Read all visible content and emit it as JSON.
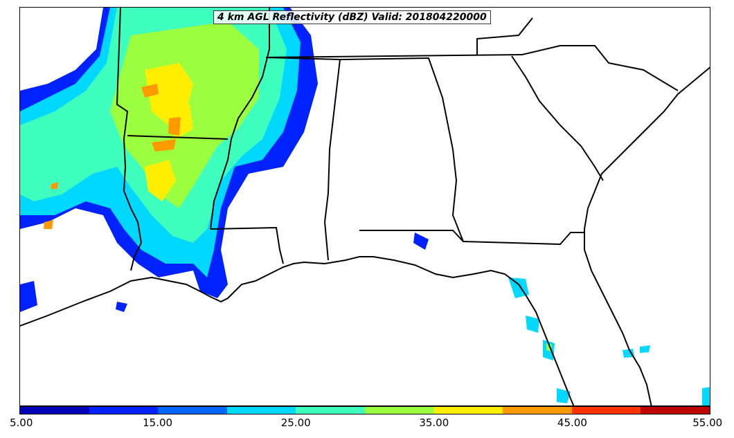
{
  "title": "4 km AGL Reflectivity (dBZ) Valid: 201804220000",
  "colorbar": {
    "ticks": [
      "5.00",
      "15.00",
      "25.00",
      "35.00",
      "45.00",
      "55.00"
    ],
    "min": 5,
    "max": 55,
    "step": 5,
    "colors": [
      "#0000b8",
      "#0022ff",
      "#0066ff",
      "#00d8ff",
      "#3fffbf",
      "#9bff3f",
      "#ffee00",
      "#ff9900",
      "#ff3300",
      "#c00000"
    ]
  }
}
